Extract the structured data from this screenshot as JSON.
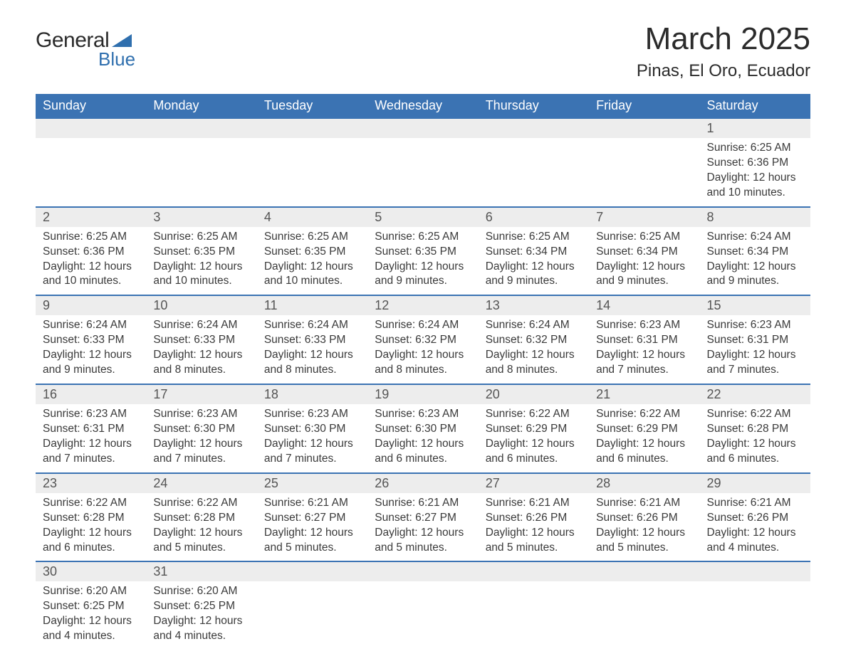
{
  "brand": {
    "word1": "General",
    "word2": "Blue",
    "accent_color": "#2f6fae"
  },
  "title": "March 2025",
  "location": "Pinas, El Oro, Ecuador",
  "colors": {
    "header_bg": "#3b73b3",
    "header_text": "#ffffff",
    "daynum_bg": "#ededed",
    "rule": "#3b73b3",
    "text": "#3a3a3a"
  },
  "font": {
    "family": "Arial",
    "title_size_pt": 33,
    "location_size_pt": 18,
    "dow_size_pt": 14,
    "body_size_pt": 12
  },
  "days_of_week": [
    "Sunday",
    "Monday",
    "Tuesday",
    "Wednesday",
    "Thursday",
    "Friday",
    "Saturday"
  ],
  "weeks": [
    [
      null,
      null,
      null,
      null,
      null,
      null,
      {
        "n": "1",
        "sr": "Sunrise: 6:25 AM",
        "ss": "Sunset: 6:36 PM",
        "dl": "Daylight: 12 hours and 10 minutes."
      }
    ],
    [
      {
        "n": "2",
        "sr": "Sunrise: 6:25 AM",
        "ss": "Sunset: 6:36 PM",
        "dl": "Daylight: 12 hours and 10 minutes."
      },
      {
        "n": "3",
        "sr": "Sunrise: 6:25 AM",
        "ss": "Sunset: 6:35 PM",
        "dl": "Daylight: 12 hours and 10 minutes."
      },
      {
        "n": "4",
        "sr": "Sunrise: 6:25 AM",
        "ss": "Sunset: 6:35 PM",
        "dl": "Daylight: 12 hours and 10 minutes."
      },
      {
        "n": "5",
        "sr": "Sunrise: 6:25 AM",
        "ss": "Sunset: 6:35 PM",
        "dl": "Daylight: 12 hours and 9 minutes."
      },
      {
        "n": "6",
        "sr": "Sunrise: 6:25 AM",
        "ss": "Sunset: 6:34 PM",
        "dl": "Daylight: 12 hours and 9 minutes."
      },
      {
        "n": "7",
        "sr": "Sunrise: 6:25 AM",
        "ss": "Sunset: 6:34 PM",
        "dl": "Daylight: 12 hours and 9 minutes."
      },
      {
        "n": "8",
        "sr": "Sunrise: 6:24 AM",
        "ss": "Sunset: 6:34 PM",
        "dl": "Daylight: 12 hours and 9 minutes."
      }
    ],
    [
      {
        "n": "9",
        "sr": "Sunrise: 6:24 AM",
        "ss": "Sunset: 6:33 PM",
        "dl": "Daylight: 12 hours and 9 minutes."
      },
      {
        "n": "10",
        "sr": "Sunrise: 6:24 AM",
        "ss": "Sunset: 6:33 PM",
        "dl": "Daylight: 12 hours and 8 minutes."
      },
      {
        "n": "11",
        "sr": "Sunrise: 6:24 AM",
        "ss": "Sunset: 6:33 PM",
        "dl": "Daylight: 12 hours and 8 minutes."
      },
      {
        "n": "12",
        "sr": "Sunrise: 6:24 AM",
        "ss": "Sunset: 6:32 PM",
        "dl": "Daylight: 12 hours and 8 minutes."
      },
      {
        "n": "13",
        "sr": "Sunrise: 6:24 AM",
        "ss": "Sunset: 6:32 PM",
        "dl": "Daylight: 12 hours and 8 minutes."
      },
      {
        "n": "14",
        "sr": "Sunrise: 6:23 AM",
        "ss": "Sunset: 6:31 PM",
        "dl": "Daylight: 12 hours and 7 minutes."
      },
      {
        "n": "15",
        "sr": "Sunrise: 6:23 AM",
        "ss": "Sunset: 6:31 PM",
        "dl": "Daylight: 12 hours and 7 minutes."
      }
    ],
    [
      {
        "n": "16",
        "sr": "Sunrise: 6:23 AM",
        "ss": "Sunset: 6:31 PM",
        "dl": "Daylight: 12 hours and 7 minutes."
      },
      {
        "n": "17",
        "sr": "Sunrise: 6:23 AM",
        "ss": "Sunset: 6:30 PM",
        "dl": "Daylight: 12 hours and 7 minutes."
      },
      {
        "n": "18",
        "sr": "Sunrise: 6:23 AM",
        "ss": "Sunset: 6:30 PM",
        "dl": "Daylight: 12 hours and 7 minutes."
      },
      {
        "n": "19",
        "sr": "Sunrise: 6:23 AM",
        "ss": "Sunset: 6:30 PM",
        "dl": "Daylight: 12 hours and 6 minutes."
      },
      {
        "n": "20",
        "sr": "Sunrise: 6:22 AM",
        "ss": "Sunset: 6:29 PM",
        "dl": "Daylight: 12 hours and 6 minutes."
      },
      {
        "n": "21",
        "sr": "Sunrise: 6:22 AM",
        "ss": "Sunset: 6:29 PM",
        "dl": "Daylight: 12 hours and 6 minutes."
      },
      {
        "n": "22",
        "sr": "Sunrise: 6:22 AM",
        "ss": "Sunset: 6:28 PM",
        "dl": "Daylight: 12 hours and 6 minutes."
      }
    ],
    [
      {
        "n": "23",
        "sr": "Sunrise: 6:22 AM",
        "ss": "Sunset: 6:28 PM",
        "dl": "Daylight: 12 hours and 6 minutes."
      },
      {
        "n": "24",
        "sr": "Sunrise: 6:22 AM",
        "ss": "Sunset: 6:28 PM",
        "dl": "Daylight: 12 hours and 5 minutes."
      },
      {
        "n": "25",
        "sr": "Sunrise: 6:21 AM",
        "ss": "Sunset: 6:27 PM",
        "dl": "Daylight: 12 hours and 5 minutes."
      },
      {
        "n": "26",
        "sr": "Sunrise: 6:21 AM",
        "ss": "Sunset: 6:27 PM",
        "dl": "Daylight: 12 hours and 5 minutes."
      },
      {
        "n": "27",
        "sr": "Sunrise: 6:21 AM",
        "ss": "Sunset: 6:26 PM",
        "dl": "Daylight: 12 hours and 5 minutes."
      },
      {
        "n": "28",
        "sr": "Sunrise: 6:21 AM",
        "ss": "Sunset: 6:26 PM",
        "dl": "Daylight: 12 hours and 5 minutes."
      },
      {
        "n": "29",
        "sr": "Sunrise: 6:21 AM",
        "ss": "Sunset: 6:26 PM",
        "dl": "Daylight: 12 hours and 4 minutes."
      }
    ],
    [
      {
        "n": "30",
        "sr": "Sunrise: 6:20 AM",
        "ss": "Sunset: 6:25 PM",
        "dl": "Daylight: 12 hours and 4 minutes."
      },
      {
        "n": "31",
        "sr": "Sunrise: 6:20 AM",
        "ss": "Sunset: 6:25 PM",
        "dl": "Daylight: 12 hours and 4 minutes."
      },
      null,
      null,
      null,
      null,
      null
    ]
  ]
}
